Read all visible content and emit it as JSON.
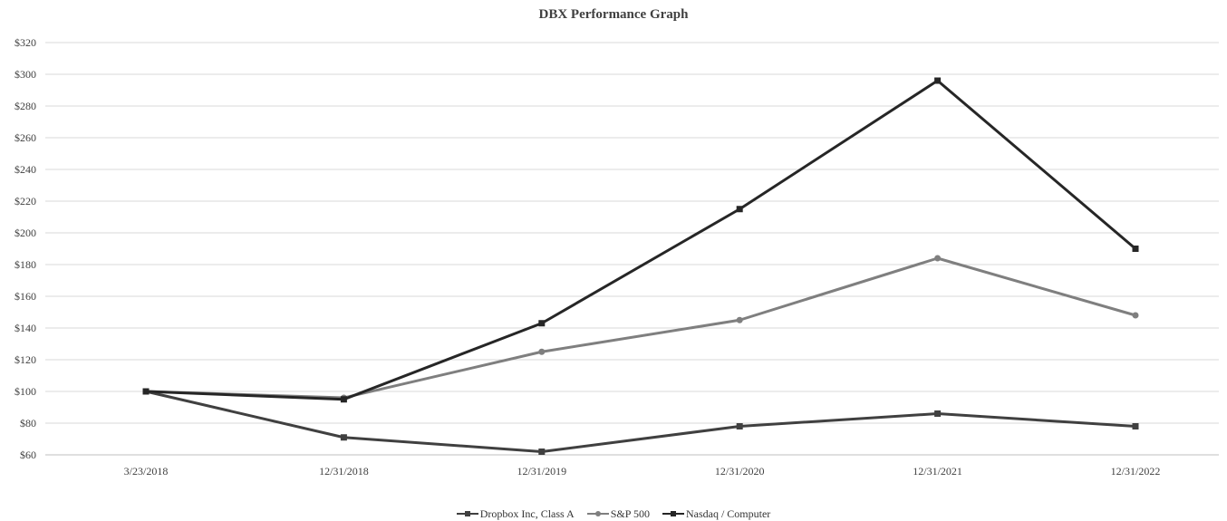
{
  "chart_data": {
    "type": "line",
    "title": "DBX Performance Graph",
    "xlabel": "",
    "ylabel": "",
    "categories": [
      "3/23/2018",
      "12/31/2018",
      "12/31/2019",
      "12/31/2020",
      "12/31/2021",
      "12/31/2022"
    ],
    "y_ticks": [
      "$60",
      "$80",
      "$100",
      "$120",
      "$140",
      "$160",
      "$180",
      "$200",
      "$220",
      "$240",
      "$260",
      "$280",
      "$300",
      "$320"
    ],
    "ylim": [
      60,
      320
    ],
    "y_tick_step": 20,
    "grid": true,
    "legend_position": "bottom-center",
    "series": [
      {
        "name": "Dropbox Inc, Class A",
        "values": [
          100,
          71,
          62,
          78,
          86,
          78
        ],
        "color": "#404040",
        "marker": "square"
      },
      {
        "name": "S&P 500",
        "values": [
          100,
          96,
          125,
          145,
          184,
          148
        ],
        "color": "#7f7f7f",
        "marker": "circle"
      },
      {
        "name": "Nasdaq / Computer",
        "values": [
          100,
          95,
          143,
          215,
          296,
          190
        ],
        "color": "#262626",
        "marker": "square"
      }
    ]
  }
}
